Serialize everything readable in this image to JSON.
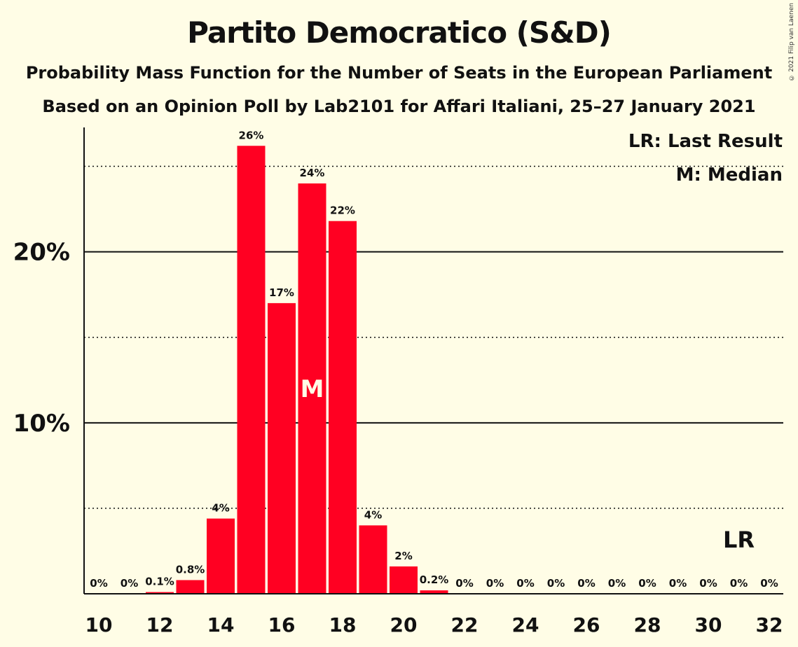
{
  "title": "Partito Democratico (S&D)",
  "subtitle1": "Probability Mass Function for the Number of Seats in the European Parliament",
  "subtitle2": "Based on an Opinion Poll by Lab2101 for Affari Italiani, 25–27 January 2021",
  "copyright": "© 2021 Filip van Laenen",
  "colors": {
    "bar": "#ff0022",
    "background": "#fffde6",
    "axis": "#111111"
  },
  "chart_data": {
    "type": "bar",
    "title": "Partito Democratico (S&D)",
    "xlabel": "",
    "ylabel": "",
    "categories": [
      10,
      11,
      12,
      13,
      14,
      15,
      16,
      17,
      18,
      19,
      20,
      21,
      22,
      23,
      24,
      25,
      26,
      27,
      28,
      29,
      30,
      31,
      32
    ],
    "values": [
      0,
      0,
      0.1,
      0.8,
      4.4,
      26.2,
      17.0,
      24.0,
      21.8,
      4.0,
      1.6,
      0.2,
      0,
      0,
      0,
      0,
      0,
      0,
      0,
      0,
      0,
      0,
      0
    ],
    "value_labels": [
      "0%",
      "0%",
      "0.1%",
      "0.8%",
      "4%",
      "26%",
      "17%",
      "24%",
      "22%",
      "4%",
      "2%",
      "0.2%",
      "0%",
      "0%",
      "0%",
      "0%",
      "0%",
      "0%",
      "0%",
      "0%",
      "0%",
      "0%",
      "0%"
    ],
    "x_tick_labels": [
      "10",
      "12",
      "14",
      "16",
      "18",
      "20",
      "22",
      "24",
      "26",
      "28",
      "30",
      "32"
    ],
    "y_tick_labels": [
      "10%",
      "20%"
    ],
    "y_major_gridlines": [
      10,
      20
    ],
    "y_minor_gridlines": [
      5,
      15,
      25
    ],
    "ylim": [
      0,
      28.5
    ],
    "median_seat": 17,
    "median_mark": "M",
    "last_result_seat": 31,
    "last_result_mark": "LR",
    "legend": [
      "LR: Last Result",
      "M: Median"
    ],
    "legend_position": "top-right"
  }
}
